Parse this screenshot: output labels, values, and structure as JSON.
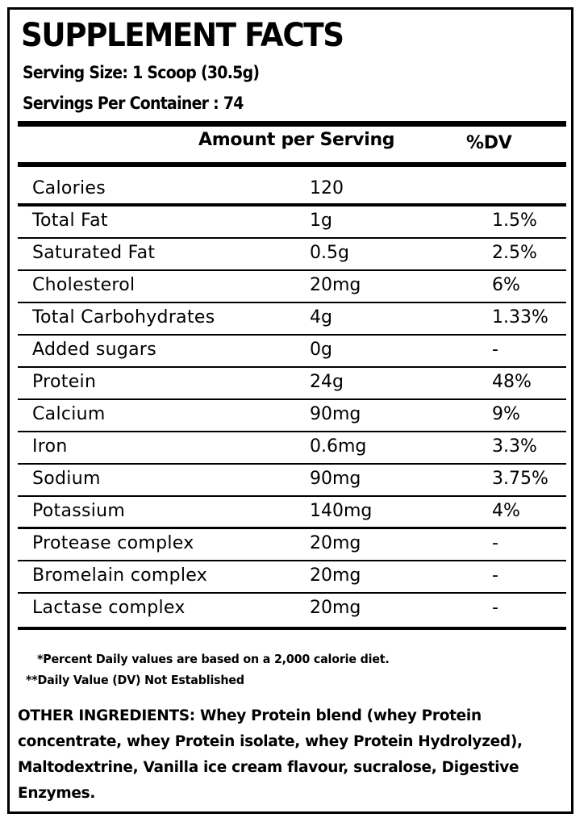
{
  "title": "SUPPLEMENT FACTS",
  "serving_size": "Serving Size: 1 Scoop (30.5g)",
  "servings_per_container": "Servings Per Container : 74",
  "header": {
    "amount": "Amount per Serving",
    "dv": "%DV"
  },
  "rows": [
    {
      "name": "Calories",
      "amount": "120",
      "dv": ""
    },
    {
      "name": "Total Fat",
      "amount": "1g",
      "dv": "1.5%"
    },
    {
      "name": "Saturated Fat",
      "amount": "0.5g",
      "dv": "2.5%"
    },
    {
      "name": "Cholesterol",
      "amount": "20mg",
      "dv": "6%"
    },
    {
      "name": "Total Carbohydrates",
      "amount": "4g",
      "dv": "1.33%"
    },
    {
      "name": "Added sugars",
      "amount": "0g",
      "dv": "-"
    },
    {
      "name": "Protein",
      "amount": "24g",
      "dv": "48%"
    },
    {
      "name": "Calcium",
      "amount": "90mg",
      "dv": "9%"
    },
    {
      "name": "Iron",
      "amount": "0.6mg",
      "dv": "3.3%"
    },
    {
      "name": "Sodium",
      "amount": "90mg",
      "dv": "3.75%"
    },
    {
      "name": "Potassium",
      "amount": "140mg",
      "dv": "4%"
    },
    {
      "name": "Protease complex",
      "amount": "20mg",
      "dv": "-"
    },
    {
      "name": "Bromelain complex",
      "amount": "20mg",
      "dv": "-"
    },
    {
      "name": "Lactase complex",
      "amount": "20mg",
      "dv": "-"
    }
  ],
  "footnotes": {
    "percent_dv": "*Percent Daily values are based on a 2,000 calorie diet.",
    "not_established": "**Daily Value (DV) Not Established"
  },
  "ingredients": {
    "label": "OTHER INGREDIENTS",
    "text": ": Whey Protein blend (whey Protein concentrate, whey Protein isolate, whey Protein Hydrolyzed), Maltodextrine, Vanilla ice cream flavour, sucralose, Digestive Enzymes."
  }
}
